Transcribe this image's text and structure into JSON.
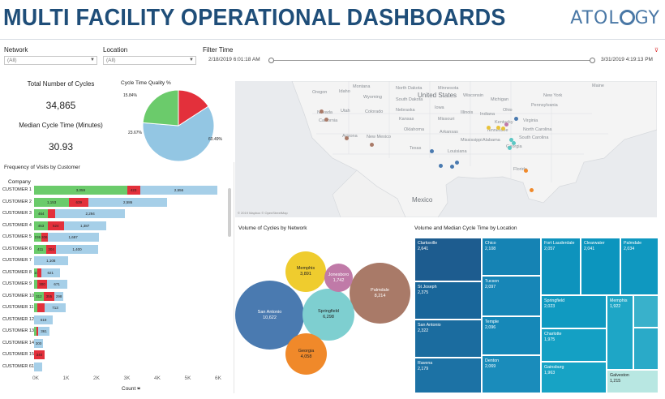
{
  "header": {
    "title": "MULTI FACILITY OPERATIONAL DASHBOARDS",
    "logo_prefix": "ATOL",
    "logo_suffix": "GY"
  },
  "filters": {
    "network_label": "Network",
    "network_value": "(All)",
    "location_label": "Location",
    "location_value": "(All)",
    "time_label": "Filter Time",
    "time_start": "2/18/2019 6:01:18 AM",
    "time_end": "3/31/2019 4:19:13 PM"
  },
  "kpis": {
    "total_cycles_label": "Total Number of Cycles",
    "total_cycles_value": "34,865",
    "median_label": "Median Cycle Time (Minutes)",
    "median_value": "30.93"
  },
  "pie": {
    "title": "Cycle Time Quality %",
    "slices": [
      {
        "label": "60.49%",
        "value": 60.49,
        "color": "#93c6e3"
      },
      {
        "label": "23.67%",
        "value": 23.67,
        "color": "#6bcb6b"
      },
      {
        "label": "15.84%",
        "value": 15.84,
        "color": "#e3303b"
      }
    ]
  },
  "visits": {
    "title": "Frequency of Visits by Customer",
    "company_header": "Company",
    "x_ticks": [
      "0K",
      "1K",
      "2K",
      "3K",
      "4K",
      "5K",
      "6K"
    ],
    "x_label": "Count",
    "colors": {
      "green": "#6bcb6b",
      "red": "#e3303b",
      "blue": "#a6cfe8"
    },
    "rows": [
      {
        "name": "CUSTOMER 1",
        "g": 3059,
        "r": 423,
        "b": 2556,
        "gl": "3,059",
        "rl": "423",
        "bl": "2,556"
      },
      {
        "name": "CUSTOMER 2",
        "g": 1153,
        "r": 639,
        "b": 2586,
        "gl": "1,153",
        "rl": "639",
        "bl": "2,586"
      },
      {
        "name": "CUSTOMER 3",
        "g": 464,
        "r": 234,
        "b": 2294,
        "gl": "464",
        "rl": "",
        "bl": "2,294"
      },
      {
        "name": "CUSTOMER 4",
        "g": 453,
        "r": 524,
        "b": 1387,
        "gl": "453",
        "rl": "524",
        "bl": "1,387"
      },
      {
        "name": "CUSTOMER 5",
        "g": 236,
        "r": 206,
        "b": 1687,
        "gl": "236",
        "rl": "206",
        "bl": "1,687"
      },
      {
        "name": "CUSTOMER 6",
        "g": 411,
        "r": 304,
        "b": 1400,
        "gl": "411",
        "rl": "304",
        "bl": "1,400"
      },
      {
        "name": "CUSTOMER 7",
        "g": 0,
        "r": 0,
        "b": 1108,
        "gl": "",
        "rl": "",
        "bl": "1,108"
      },
      {
        "name": "CUSTOMER 8",
        "g": 109,
        "r": 120,
        "b": 621,
        "gl": "109",
        "rl": "",
        "bl": "621"
      },
      {
        "name": "CUSTOMER 9",
        "g": 116,
        "r": 300,
        "b": 671,
        "gl": "",
        "rl": "300",
        "bl": "671"
      },
      {
        "name": "CUSTOMER 10",
        "g": 312,
        "r": 355,
        "b": 298,
        "gl": "312",
        "rl": "355",
        "bl": "298"
      },
      {
        "name": "CUSTOMER 11",
        "g": 115,
        "r": 223,
        "b": 713,
        "gl": "",
        "rl": "",
        "bl": "713"
      },
      {
        "name": "CUSTOMER 12",
        "g": 0,
        "r": 0,
        "b": 619,
        "gl": "",
        "rl": "",
        "bl": "619"
      },
      {
        "name": "CUSTOMER 13",
        "g": 90,
        "r": 50,
        "b": 361,
        "gl": "",
        "rl": "",
        "bl": "361"
      },
      {
        "name": "CUSTOMER 14",
        "g": 0,
        "r": 0,
        "b": 300,
        "gl": "",
        "rl": "",
        "bl": "300"
      },
      {
        "name": "CUSTOMER 15",
        "g": 0,
        "r": 340,
        "b": 0,
        "gl": "",
        "rl": "340",
        "bl": ""
      },
      {
        "name": "CUSTOMER 61",
        "g": 0,
        "r": 0,
        "b": 265,
        "gl": "",
        "rl": "",
        "bl": ""
      }
    ]
  },
  "map": {
    "labels": {
      "states": "United States",
      "mexico": "Mexico",
      "oregon": "Oregon",
      "idaho": "Idaho",
      "wyoming": "Wyoming",
      "nevada": "Nevada",
      "utah": "Utah",
      "colorado": "Colorado",
      "california": "California",
      "arizona": "Arizona",
      "new_mexico": "New Mexico",
      "kansas": "Kansas",
      "oklahoma": "Oklahoma",
      "texas": "Texas",
      "nebraska": "Nebraska",
      "iowa": "Iowa",
      "missouri": "Missouri",
      "arkansas": "Arkansas",
      "minnesota": "Minnesota",
      "wisconsin": "Wisconsin",
      "illinois": "Illinois",
      "indiana": "Indiana",
      "ohio": "Ohio",
      "michigan": "Michigan",
      "kentucky": "Kentucky",
      "tennessee": "Tennessee",
      "georgia": "Georgia",
      "florida": "Florida",
      "virginia": "Virginia",
      "north_carolina": "North Carolina",
      "south_carolina": "South Carolina",
      "pennsylvania": "Pennsylvania",
      "new_york": "New York",
      "mississippi": "Mississippi",
      "alabama": "Alabama",
      "louisiana": "Louisiana",
      "south_dakota": "South Dakota",
      "north_dakota": "North Dakota",
      "montana": "Montana",
      "maine": "Maine"
    },
    "attribution": "© 2019 Mapbox © OpenStreetMap",
    "dot_colors": {
      "brown": "#a97a68",
      "blue": "#4a7ab0",
      "yellow": "#e8c23a",
      "teal": "#5cc7c4",
      "orange": "#f0892a",
      "purple": "#c07aa8"
    }
  },
  "network_volume": {
    "title": "Volume of Cycles by Network",
    "bubbles": [
      {
        "name": "San Antonio",
        "value": "10,622",
        "color": "#4a7ab0"
      },
      {
        "name": "Palmdale",
        "value": "8,214",
        "color": "#a97a68"
      },
      {
        "name": "Springfield",
        "value": "6,298",
        "color": "#7ecfd0"
      },
      {
        "name": "Georgia",
        "value": "4,058",
        "color": "#f0892a"
      },
      {
        "name": "Memphis",
        "value": "3,891",
        "color": "#efcc2e"
      },
      {
        "name": "Jonesboro",
        "value": "1,742",
        "color": "#c07aa8"
      }
    ]
  },
  "treemap": {
    "title": "Volume and Median Cycle Time by Location",
    "cells": [
      {
        "name": "Clarksville",
        "value": "2,641",
        "color": "#1d5c8f"
      },
      {
        "name": "St Joseph",
        "value": "2,375",
        "color": "#19669a"
      },
      {
        "name": "San Antonio",
        "value": "2,322",
        "color": "#1b6c9f"
      },
      {
        "name": "Ravena",
        "value": "2,179",
        "color": "#1c72a5"
      },
      {
        "name": "Chico",
        "value": "2,108",
        "color": "#1583b4"
      },
      {
        "name": "Tucson",
        "value": "2,097",
        "color": "#1786b7"
      },
      {
        "name": "Temple",
        "value": "2,096",
        "color": "#1688b8"
      },
      {
        "name": "Denton",
        "value": "2,069",
        "color": "#1a8cbb"
      },
      {
        "name": "Fort Lauderdale",
        "value": "2,057",
        "color": "#0e93bd"
      },
      {
        "name": "Clearwater",
        "value": "2,041",
        "color": "#0c95be"
      },
      {
        "name": "Palmdale",
        "value": "2,034",
        "color": "#0f98c0"
      },
      {
        "name": "Springfield",
        "value": "2,023",
        "color": "#109ac1"
      },
      {
        "name": "Charlotte",
        "value": "1,975",
        "color": "#14a0c4"
      },
      {
        "name": "Gainsburg",
        "value": "1,963",
        "color": "#17a3c5"
      },
      {
        "name": "Memphis",
        "value": "1,922",
        "color": "#1ea6c6"
      },
      {
        "name": "",
        "value": "",
        "color": "#39b1cb"
      },
      {
        "name": "",
        "value": "",
        "color": "#2aaac8"
      },
      {
        "name": "Galveston",
        "value": "1,215",
        "color": "#b8e7e2"
      }
    ]
  }
}
